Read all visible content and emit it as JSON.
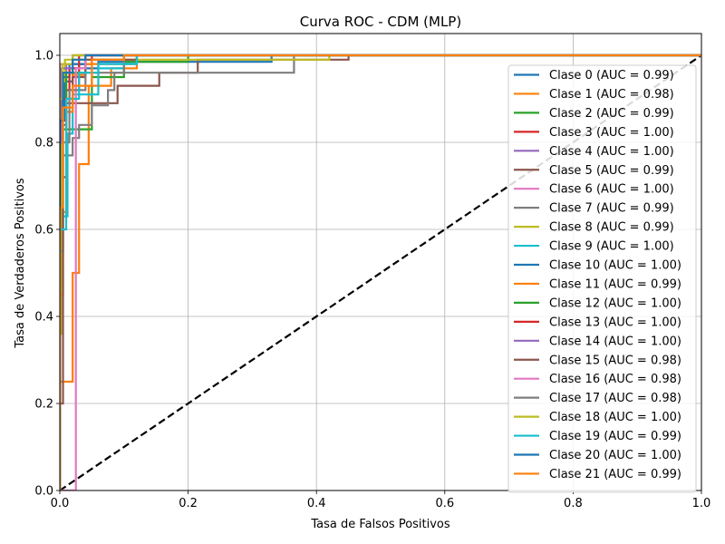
{
  "chart_data": {
    "type": "line",
    "title": "Curva ROC - CDM (MLP)",
    "xlabel": "Tasa de Falsos Positivos",
    "ylabel": "Tasa de Verdaderos Positivos",
    "xlim": [
      0,
      1
    ],
    "ylim": [
      0,
      1.05
    ],
    "xticks": [
      "0.0",
      "0.2",
      "0.4",
      "0.6",
      "0.8",
      "1.0"
    ],
    "yticks": [
      "0.0",
      "0.2",
      "0.4",
      "0.6",
      "0.8",
      "1.0"
    ],
    "grid": true,
    "legend_position": "right",
    "diagonal": {
      "x": [
        0,
        1
      ],
      "y": [
        0,
        1
      ],
      "color": "#000000",
      "style": "dashed"
    },
    "series": [
      {
        "name": "Clase 0 (AUC = 0.99)",
        "color": "#1f77b4",
        "points": [
          [
            0,
            0
          ],
          [
            0,
            0.55
          ],
          [
            0.004,
            0.55
          ],
          [
            0.004,
            0.85
          ],
          [
            0.008,
            0.85
          ],
          [
            0.008,
            0.94
          ],
          [
            0.02,
            0.94
          ],
          [
            0.02,
            0.97
          ],
          [
            0.06,
            0.97
          ],
          [
            0.06,
            0.985
          ],
          [
            0.33,
            0.985
          ],
          [
            0.33,
            1.0
          ],
          [
            1,
            1
          ]
        ]
      },
      {
        "name": "Clase 1 (AUC = 0.98)",
        "color": "#ff7f0e",
        "points": [
          [
            0,
            0
          ],
          [
            0,
            0.25
          ],
          [
            0.02,
            0.25
          ],
          [
            0.02,
            0.5
          ],
          [
            0.03,
            0.5
          ],
          [
            0.03,
            0.75
          ],
          [
            0.045,
            0.75
          ],
          [
            0.045,
            0.93
          ],
          [
            0.08,
            0.93
          ],
          [
            0.08,
            0.97
          ],
          [
            0.12,
            0.97
          ],
          [
            0.12,
            1.0
          ],
          [
            1,
            1
          ]
        ]
      },
      {
        "name": "Clase 2 (AUC = 0.99)",
        "color": "#2ca02c",
        "points": [
          [
            0,
            0
          ],
          [
            0,
            0.6
          ],
          [
            0.005,
            0.6
          ],
          [
            0.005,
            0.83
          ],
          [
            0.05,
            0.83
          ],
          [
            0.05,
            0.95
          ],
          [
            0.1,
            0.95
          ],
          [
            0.1,
            0.985
          ],
          [
            0.2,
            0.985
          ],
          [
            0.2,
            1.0
          ],
          [
            1,
            1
          ]
        ]
      },
      {
        "name": "Clase 3 (AUC = 1.00)",
        "color": "#d62728",
        "points": [
          [
            0,
            0
          ],
          [
            0,
            0.85
          ],
          [
            0.01,
            0.85
          ],
          [
            0.01,
            0.92
          ],
          [
            0.03,
            0.92
          ],
          [
            0.03,
            0.98
          ],
          [
            0.05,
            0.98
          ],
          [
            0.05,
            1.0
          ],
          [
            1,
            1
          ]
        ]
      },
      {
        "name": "Clase 4 (AUC = 1.00)",
        "color": "#9467bd",
        "points": [
          [
            0,
            0
          ],
          [
            0,
            0.7
          ],
          [
            0.004,
            0.7
          ],
          [
            0.004,
            0.96
          ],
          [
            0.01,
            0.96
          ],
          [
            0.01,
            0.98
          ],
          [
            0.04,
            0.98
          ],
          [
            0.04,
            1.0
          ],
          [
            1,
            1
          ]
        ]
      },
      {
        "name": "Clase 5 (AUC = 0.99)",
        "color": "#8c564b",
        "points": [
          [
            0,
            0
          ],
          [
            0,
            0.72
          ],
          [
            0.01,
            0.72
          ],
          [
            0.01,
            0.89
          ],
          [
            0.09,
            0.89
          ],
          [
            0.09,
            0.93
          ],
          [
            0.155,
            0.93
          ],
          [
            0.155,
            0.96
          ],
          [
            0.215,
            0.96
          ],
          [
            0.215,
            0.99
          ],
          [
            0.45,
            0.99
          ],
          [
            0.45,
            1.0
          ],
          [
            1,
            1
          ]
        ]
      },
      {
        "name": "Clase 6 (AUC = 1.00)",
        "color": "#e377c2",
        "points": [
          [
            0,
            0
          ],
          [
            0,
            0.98
          ],
          [
            0.04,
            0.98
          ],
          [
            0.04,
            1.0
          ],
          [
            1,
            1
          ]
        ]
      },
      {
        "name": "Clase 7 (AUC = 0.99)",
        "color": "#7f7f7f",
        "points": [
          [
            0,
            0
          ],
          [
            0,
            0.77
          ],
          [
            0.02,
            0.77
          ],
          [
            0.02,
            0.81
          ],
          [
            0.03,
            0.81
          ],
          [
            0.03,
            0.84
          ],
          [
            0.05,
            0.84
          ],
          [
            0.05,
            0.885
          ],
          [
            0.075,
            0.885
          ],
          [
            0.075,
            0.92
          ],
          [
            0.085,
            0.92
          ],
          [
            0.085,
            0.96
          ],
          [
            0.365,
            0.96
          ],
          [
            0.365,
            1.0
          ],
          [
            1,
            1
          ]
        ]
      },
      {
        "name": "Clase 8 (AUC = 0.99)",
        "color": "#bcbd22",
        "points": [
          [
            0,
            0
          ],
          [
            0,
            0.36
          ],
          [
            0.003,
            0.36
          ],
          [
            0.003,
            0.94
          ],
          [
            0.008,
            0.94
          ],
          [
            0.008,
            0.99
          ],
          [
            0.42,
            0.99
          ],
          [
            0.42,
            1.0
          ],
          [
            1,
            1
          ]
        ]
      },
      {
        "name": "Clase 9 (AUC = 1.00)",
        "color": "#17becf",
        "points": [
          [
            0,
            0
          ],
          [
            0,
            0.55
          ],
          [
            0.005,
            0.55
          ],
          [
            0.005,
            0.63
          ],
          [
            0.012,
            0.63
          ],
          [
            0.012,
            0.82
          ],
          [
            0.02,
            0.82
          ],
          [
            0.02,
            0.91
          ],
          [
            0.06,
            0.91
          ],
          [
            0.06,
            0.97
          ],
          [
            0.1,
            0.97
          ],
          [
            0.1,
            1.0
          ],
          [
            1,
            1
          ]
        ]
      },
      {
        "name": "Clase 10 (AUC = 1.00)",
        "color": "#1f77b4",
        "points": [
          [
            0,
            0
          ],
          [
            0,
            0.8
          ],
          [
            0.004,
            0.8
          ],
          [
            0.004,
            0.95
          ],
          [
            0.015,
            0.95
          ],
          [
            0.015,
            0.98
          ],
          [
            0.04,
            0.98
          ],
          [
            0.04,
            1.0
          ],
          [
            1,
            1
          ]
        ]
      },
      {
        "name": "Clase 11 (AUC = 0.99)",
        "color": "#ff7f0e",
        "points": [
          [
            0,
            0
          ],
          [
            0,
            0.45
          ],
          [
            0.005,
            0.45
          ],
          [
            0.005,
            0.64
          ],
          [
            0.01,
            0.64
          ],
          [
            0.01,
            0.87
          ],
          [
            0.02,
            0.87
          ],
          [
            0.02,
            0.955
          ],
          [
            0.04,
            0.955
          ],
          [
            0.04,
            0.98
          ],
          [
            0.12,
            0.98
          ],
          [
            0.12,
            1.0
          ],
          [
            1,
            1
          ]
        ]
      },
      {
        "name": "Clase 12 (AUC = 1.00)",
        "color": "#2ca02c",
        "points": [
          [
            0,
            0
          ],
          [
            0,
            0.9
          ],
          [
            0.01,
            0.9
          ],
          [
            0.01,
            0.96
          ],
          [
            0.04,
            0.96
          ],
          [
            0.04,
            1.0
          ],
          [
            1,
            1
          ]
        ]
      },
      {
        "name": "Clase 13 (AUC = 1.00)",
        "color": "#d62728",
        "points": [
          [
            0,
            0
          ],
          [
            0,
            0.8
          ],
          [
            0.004,
            0.8
          ],
          [
            0.004,
            0.9
          ],
          [
            0.015,
            0.9
          ],
          [
            0.015,
            0.97
          ],
          [
            0.03,
            0.97
          ],
          [
            0.03,
            1.0
          ],
          [
            1,
            1
          ]
        ]
      },
      {
        "name": "Clase 14 (AUC = 1.00)",
        "color": "#9467bd",
        "points": [
          [
            0,
            0
          ],
          [
            0,
            0.8
          ],
          [
            0.003,
            0.8
          ],
          [
            0.003,
            0.97
          ],
          [
            0.02,
            0.97
          ],
          [
            0.02,
            1.0
          ],
          [
            1,
            1
          ]
        ]
      },
      {
        "name": "Clase 15 (AUC = 0.98)",
        "color": "#8c564b",
        "points": [
          [
            0,
            0
          ],
          [
            0,
            0.2
          ],
          [
            0.005,
            0.2
          ],
          [
            0.005,
            0.84
          ],
          [
            0.01,
            0.84
          ],
          [
            0.01,
            0.9
          ],
          [
            0.02,
            0.9
          ],
          [
            0.02,
            0.95
          ],
          [
            0.04,
            0.95
          ],
          [
            0.04,
            0.99
          ],
          [
            0.12,
            0.99
          ],
          [
            0.12,
            1.0
          ],
          [
            1,
            1
          ]
        ]
      },
      {
        "name": "Clase 16 (AUC = 0.98)",
        "color": "#e377c2",
        "points": [
          [
            0,
            0
          ],
          [
            0.025,
            0
          ],
          [
            0.025,
            0.97
          ],
          [
            0.04,
            0.97
          ],
          [
            0.04,
            1.0
          ],
          [
            1,
            1
          ]
        ]
      },
      {
        "name": "Clase 17 (AUC = 0.98)",
        "color": "#7f7f7f",
        "points": [
          [
            0,
            0
          ],
          [
            0,
            0.8
          ],
          [
            0.015,
            0.8
          ],
          [
            0.015,
            0.92
          ],
          [
            0.04,
            0.92
          ],
          [
            0.04,
            0.96
          ],
          [
            0.1,
            0.96
          ],
          [
            0.1,
            1.0
          ],
          [
            1,
            1
          ]
        ]
      },
      {
        "name": "Clase 18 (AUC = 1.00)",
        "color": "#bcbd22",
        "points": [
          [
            0,
            0
          ],
          [
            0,
            0.9
          ],
          [
            0.004,
            0.9
          ],
          [
            0.004,
            0.98
          ],
          [
            0.02,
            0.98
          ],
          [
            0.02,
            1.0
          ],
          [
            1,
            1
          ]
        ]
      },
      {
        "name": "Clase 19 (AUC = 0.99)",
        "color": "#17becf",
        "points": [
          [
            0,
            0
          ],
          [
            0,
            0.6
          ],
          [
            0.01,
            0.6
          ],
          [
            0.01,
            0.9
          ],
          [
            0.03,
            0.9
          ],
          [
            0.03,
            0.96
          ],
          [
            0.06,
            0.96
          ],
          [
            0.06,
            0.98
          ],
          [
            0.12,
            0.98
          ],
          [
            0.12,
            1.0
          ],
          [
            1,
            1
          ]
        ]
      },
      {
        "name": "Clase 20 (AUC = 1.00)",
        "color": "#1f77b4",
        "points": [
          [
            0,
            0
          ],
          [
            0,
            0.85
          ],
          [
            0.005,
            0.85
          ],
          [
            0.005,
            0.96
          ],
          [
            0.02,
            0.96
          ],
          [
            0.02,
            0.99
          ],
          [
            0.04,
            0.99
          ],
          [
            0.04,
            1.0
          ],
          [
            1,
            1
          ]
        ]
      },
      {
        "name": "Clase 21 (AUC = 0.99)",
        "color": "#ff7f0e",
        "points": [
          [
            0,
            0
          ],
          [
            0,
            0.65
          ],
          [
            0.005,
            0.65
          ],
          [
            0.005,
            0.88
          ],
          [
            0.02,
            0.88
          ],
          [
            0.02,
            0.93
          ],
          [
            0.05,
            0.93
          ],
          [
            0.05,
            0.99
          ],
          [
            0.1,
            0.99
          ],
          [
            0.1,
            1.0
          ],
          [
            1,
            1
          ]
        ]
      }
    ]
  }
}
